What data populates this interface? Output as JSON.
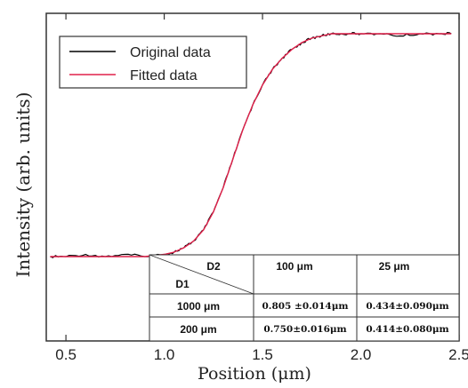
{
  "chart_data": {
    "type": "line",
    "title": "",
    "xlabel": "Position (μm)",
    "ylabel": "Intensity (arb. units)",
    "xlim": [
      0.4,
      2.5
    ],
    "xticks": [
      "0.5",
      "1.0",
      "1.5",
      "2.0",
      "2.5"
    ],
    "xtick_values": [
      0.5,
      1.0,
      1.5,
      2.0,
      2.5
    ],
    "grid": false,
    "legend_position": "top-left",
    "series": [
      {
        "name": "Original data",
        "color": "#000000",
        "x": [
          0.42,
          0.5,
          0.6,
          0.7,
          0.8,
          0.9,
          1.0,
          1.05,
          1.1,
          1.15,
          1.2,
          1.25,
          1.3,
          1.35,
          1.4,
          1.45,
          1.5,
          1.55,
          1.6,
          1.65,
          1.7,
          1.75,
          1.8,
          1.85,
          1.9,
          1.95,
          2.0,
          2.1,
          2.2,
          2.3,
          2.4,
          2.46
        ],
        "y": [
          0.0,
          0.0,
          0.01,
          0.0,
          0.01,
          0.0,
          0.01,
          0.02,
          0.04,
          0.07,
          0.12,
          0.2,
          0.31,
          0.44,
          0.57,
          0.68,
          0.77,
          0.84,
          0.89,
          0.93,
          0.96,
          0.98,
          0.99,
          1.0,
          1.0,
          1.0,
          1.0,
          1.0,
          0.99,
          1.0,
          1.0,
          1.0
        ]
      },
      {
        "name": "Fitted data",
        "color": "#e0204a",
        "x": [
          0.42,
          0.5,
          0.6,
          0.7,
          0.8,
          0.9,
          1.0,
          1.05,
          1.1,
          1.15,
          1.2,
          1.25,
          1.3,
          1.35,
          1.4,
          1.45,
          1.5,
          1.55,
          1.6,
          1.65,
          1.7,
          1.75,
          1.8,
          1.85,
          1.9,
          1.95,
          2.0,
          2.1,
          2.2,
          2.3,
          2.4,
          2.46
        ],
        "y": [
          0.0,
          0.0,
          0.0,
          0.0,
          0.0,
          0.0,
          0.01,
          0.02,
          0.04,
          0.07,
          0.12,
          0.2,
          0.31,
          0.44,
          0.57,
          0.68,
          0.77,
          0.84,
          0.89,
          0.93,
          0.96,
          0.98,
          0.99,
          1.0,
          1.0,
          1.0,
          1.0,
          1.0,
          1.0,
          1.0,
          1.0,
          1.0
        ]
      }
    ]
  },
  "table": {
    "corner_top": "D2",
    "corner_bottom": "D1",
    "col_headers": [
      "100 μm",
      "25 μm"
    ],
    "rows": [
      {
        "label": "1000 μm",
        "cells": [
          "0.805 ±0.014μm",
          "0.434±0.090μm"
        ]
      },
      {
        "label": "200 μm",
        "cells": [
          "0.750±0.016μm",
          "0.414±0.080μm"
        ]
      }
    ]
  }
}
